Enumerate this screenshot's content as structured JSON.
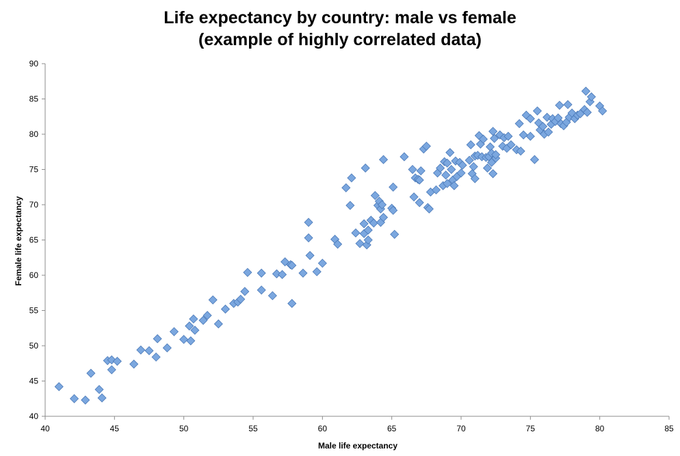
{
  "chart_data": {
    "type": "scatter",
    "title_line1": "Life expectancy by country: male vs female",
    "title_line2": "(example of highly correlated data)",
    "xlabel": "Male life expectancy",
    "ylabel": "Female life expectancy",
    "xlim": [
      40,
      85
    ],
    "ylim": [
      40,
      90
    ],
    "xticks": [
      40,
      45,
      50,
      55,
      60,
      65,
      70,
      75,
      80,
      85
    ],
    "yticks": [
      40,
      45,
      50,
      55,
      60,
      65,
      70,
      75,
      80,
      85,
      90
    ],
    "xtick_labels": [
      "40",
      "45",
      "50",
      "55",
      "60",
      "65",
      "70",
      "75",
      "80",
      "85"
    ],
    "ytick_labels": [
      "40",
      "45",
      "50",
      "55",
      "60",
      "65",
      "70",
      "75",
      "80",
      "85",
      "90"
    ],
    "grid": false,
    "marker": "diamond",
    "marker_color": "#7BA7DF",
    "marker_edge_color": "#4A79B8",
    "points": [
      [
        41.0,
        44.2
      ],
      [
        42.1,
        42.5
      ],
      [
        42.9,
        42.3
      ],
      [
        43.3,
        46.1
      ],
      [
        43.9,
        43.8
      ],
      [
        44.1,
        42.6
      ],
      [
        44.5,
        47.9
      ],
      [
        44.8,
        48.0
      ],
      [
        44.8,
        46.6
      ],
      [
        45.2,
        47.8
      ],
      [
        46.4,
        47.4
      ],
      [
        46.9,
        49.4
      ],
      [
        47.5,
        49.3
      ],
      [
        48.0,
        48.4
      ],
      [
        48.1,
        51.0
      ],
      [
        48.8,
        49.7
      ],
      [
        49.3,
        52.0
      ],
      [
        50.0,
        50.9
      ],
      [
        50.4,
        52.8
      ],
      [
        50.5,
        50.7
      ],
      [
        50.7,
        53.8
      ],
      [
        50.8,
        52.2
      ],
      [
        51.4,
        53.6
      ],
      [
        51.7,
        54.3
      ],
      [
        52.1,
        56.5
      ],
      [
        52.5,
        53.1
      ],
      [
        53.0,
        55.2
      ],
      [
        53.6,
        56.0
      ],
      [
        53.9,
        56.2
      ],
      [
        54.1,
        56.6
      ],
      [
        54.4,
        57.7
      ],
      [
        54.6,
        60.4
      ],
      [
        55.6,
        57.9
      ],
      [
        55.6,
        60.3
      ],
      [
        56.4,
        57.1
      ],
      [
        56.7,
        60.2
      ],
      [
        57.1,
        60.1
      ],
      [
        57.3,
        61.9
      ],
      [
        57.7,
        61.5
      ],
      [
        57.8,
        61.4
      ],
      [
        57.8,
        56.0
      ],
      [
        58.6,
        60.3
      ],
      [
        59.0,
        67.5
      ],
      [
        59.0,
        65.3
      ],
      [
        59.1,
        62.8
      ],
      [
        59.6,
        60.5
      ],
      [
        60.0,
        61.7
      ],
      [
        60.9,
        65.1
      ],
      [
        61.1,
        64.4
      ],
      [
        61.7,
        72.4
      ],
      [
        62.0,
        69.9
      ],
      [
        62.1,
        73.8
      ],
      [
        62.4,
        66.0
      ],
      [
        62.7,
        64.5
      ],
      [
        63.0,
        65.9
      ],
      [
        63.0,
        67.3
      ],
      [
        63.1,
        75.2
      ],
      [
        63.2,
        64.3
      ],
      [
        63.3,
        65.0
      ],
      [
        63.3,
        66.4
      ],
      [
        63.5,
        67.8
      ],
      [
        63.7,
        67.4
      ],
      [
        63.8,
        71.3
      ],
      [
        64.0,
        69.9
      ],
      [
        64.1,
        70.5
      ],
      [
        64.2,
        69.4
      ],
      [
        64.2,
        67.5
      ],
      [
        64.3,
        70.0
      ],
      [
        64.4,
        68.2
      ],
      [
        64.4,
        76.4
      ],
      [
        65.0,
        69.5
      ],
      [
        65.1,
        69.2
      ],
      [
        65.2,
        65.8
      ],
      [
        65.1,
        72.5
      ],
      [
        65.9,
        76.8
      ],
      [
        66.5,
        75.0
      ],
      [
        66.6,
        71.1
      ],
      [
        66.7,
        73.8
      ],
      [
        66.9,
        73.6
      ],
      [
        67.0,
        70.3
      ],
      [
        67.0,
        73.5
      ],
      [
        67.1,
        74.8
      ],
      [
        67.3,
        77.9
      ],
      [
        67.5,
        78.3
      ],
      [
        67.6,
        69.6
      ],
      [
        67.7,
        69.4
      ],
      [
        67.8,
        71.8
      ],
      [
        68.2,
        72.1
      ],
      [
        68.3,
        74.5
      ],
      [
        68.5,
        75.2
      ],
      [
        68.7,
        72.7
      ],
      [
        68.8,
        76.1
      ],
      [
        68.9,
        74.2
      ],
      [
        69.0,
        73.0
      ],
      [
        69.0,
        75.9
      ],
      [
        69.2,
        77.4
      ],
      [
        69.3,
        75.0
      ],
      [
        69.4,
        73.5
      ],
      [
        69.5,
        72.7
      ],
      [
        69.6,
        76.2
      ],
      [
        69.7,
        74.0
      ],
      [
        69.9,
        76.0
      ],
      [
        70.0,
        74.5
      ],
      [
        70.1,
        75.6
      ],
      [
        70.6,
        76.3
      ],
      [
        70.7,
        78.5
      ],
      [
        70.8,
        74.4
      ],
      [
        70.9,
        75.4
      ],
      [
        71.0,
        73.7
      ],
      [
        71.0,
        76.9
      ],
      [
        71.2,
        77.0
      ],
      [
        71.3,
        79.8
      ],
      [
        71.4,
        78.6
      ],
      [
        71.5,
        76.8
      ],
      [
        71.6,
        79.3
      ],
      [
        71.8,
        76.7
      ],
      [
        71.9,
        75.2
      ],
      [
        72.0,
        76.8
      ],
      [
        72.1,
        78.2
      ],
      [
        72.2,
        77.3
      ],
      [
        72.2,
        76.0
      ],
      [
        72.3,
        80.4
      ],
      [
        72.3,
        74.4
      ],
      [
        72.4,
        79.4
      ],
      [
        72.5,
        76.6
      ],
      [
        72.5,
        77.1
      ],
      [
        72.8,
        79.9
      ],
      [
        73.0,
        78.3
      ],
      [
        73.1,
        79.5
      ],
      [
        73.3,
        78.0
      ],
      [
        73.4,
        79.7
      ],
      [
        73.6,
        78.5
      ],
      [
        74.0,
        77.8
      ],
      [
        74.2,
        81.5
      ],
      [
        74.3,
        77.6
      ],
      [
        74.5,
        79.9
      ],
      [
        74.7,
        82.7
      ],
      [
        75.0,
        82.2
      ],
      [
        75.0,
        79.7
      ],
      [
        75.3,
        76.4
      ],
      [
        75.5,
        83.3
      ],
      [
        75.6,
        81.6
      ],
      [
        75.7,
        80.6
      ],
      [
        75.9,
        81.1
      ],
      [
        76.0,
        80.0
      ],
      [
        76.2,
        82.4
      ],
      [
        76.3,
        80.3
      ],
      [
        76.5,
        81.4
      ],
      [
        76.6,
        82.2
      ],
      [
        76.8,
        81.8
      ],
      [
        77.0,
        82.3
      ],
      [
        77.1,
        84.1
      ],
      [
        77.2,
        81.5
      ],
      [
        77.4,
        81.2
      ],
      [
        77.6,
        81.7
      ],
      [
        77.7,
        84.2
      ],
      [
        77.8,
        82.4
      ],
      [
        78.0,
        83.0
      ],
      [
        78.2,
        82.2
      ],
      [
        78.4,
        82.7
      ],
      [
        78.6,
        82.9
      ],
      [
        78.9,
        83.5
      ],
      [
        79.0,
        86.1
      ],
      [
        79.1,
        83.1
      ],
      [
        79.3,
        84.6
      ],
      [
        79.4,
        85.3
      ],
      [
        80.0,
        84.0
      ],
      [
        80.2,
        83.3
      ]
    ]
  }
}
